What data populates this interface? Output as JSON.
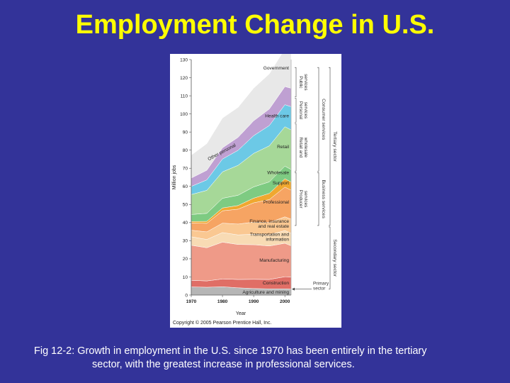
{
  "slide": {
    "title": "Employment Change in U.S.",
    "caption_line1": "Fig 12-2: Growth in employment in the U.S. since 1970 has been entirely in the tertiary",
    "caption_line2": "sector, with the greatest increase in professional services."
  },
  "colors": {
    "background": "#333399",
    "title": "#ffff00",
    "caption": "#ffffff"
  },
  "chart_data": {
    "type": "area",
    "stacked": true,
    "x": [
      1970,
      1975,
      1980,
      1985,
      1990,
      1995,
      2000,
      2002
    ],
    "xticks": [
      "1970",
      "1980",
      "1990",
      "2000"
    ],
    "yticks": [
      "0",
      "10",
      "20",
      "30",
      "40",
      "50",
      "60",
      "70",
      "80",
      "90",
      "100",
      "110",
      "120",
      "130"
    ],
    "xlabel": "Year",
    "ylabel": "Million jobs",
    "ylim": [
      0,
      130
    ],
    "xlim": [
      1970,
      2002
    ],
    "grid": false,
    "copyright": "Copyright © 2005 Pearson Prentice Hall, Inc.",
    "series": [
      {
        "name": "Agriculture and mining",
        "color": "#b6b6b6",
        "values": [
          4.5,
          4.3,
          4.6,
          4.0,
          3.6,
          3.4,
          3.4,
          3.3
        ]
      },
      {
        "name": "Construction",
        "color": "#e06e66",
        "values": [
          3.6,
          3.5,
          4.3,
          4.6,
          5.1,
          5.2,
          6.7,
          6.7
        ]
      },
      {
        "name": "Manufacturing",
        "color": "#ef9a88",
        "values": [
          19.4,
          18.3,
          20.3,
          19.3,
          19.1,
          18.5,
          18.5,
          17.2
        ]
      },
      {
        "name": "Transportation and information",
        "color": "#f8dbb4",
        "values": [
          4.7,
          4.6,
          5.3,
          5.3,
          5.8,
          6.1,
          7.0,
          6.9
        ]
      },
      {
        "name": "Finance, insurance and real estate",
        "color": "#fac892",
        "values": [
          3.6,
          4.2,
          5.2,
          6.0,
          6.7,
          6.8,
          7.6,
          7.8
        ]
      },
      {
        "name": "Professional",
        "color": "#f6a463",
        "values": [
          4.0,
          4.7,
          6.8,
          8.2,
          10.6,
          12.7,
          16.4,
          16.0
        ]
      },
      {
        "name": "Support",
        "color": "#f0a830",
        "values": [
          0.8,
          1.1,
          1.6,
          2.0,
          2.6,
          3.4,
          4.6,
          4.5
        ]
      },
      {
        "name": "Wholesale",
        "color": "#7ecb82",
        "values": [
          3.9,
          4.4,
          5.3,
          5.7,
          6.2,
          6.4,
          7.0,
          6.9
        ]
      },
      {
        "name": "Retail",
        "color": "#a6d898",
        "values": [
          11.0,
          12.7,
          14.6,
          16.5,
          18.5,
          19.9,
          21.7,
          21.9
        ]
      },
      {
        "name": "Health care",
        "color": "#6cc9e6",
        "values": [
          4.5,
          5.8,
          7.1,
          8.3,
          9.8,
          11.2,
          12.2,
          12.8
        ]
      },
      {
        "name": "Other personal",
        "color": "#bfa0d2",
        "values": [
          4.6,
          5.3,
          6.2,
          7.2,
          8.2,
          9.1,
          10.0,
          10.2
        ]
      },
      {
        "name": "Government",
        "color": "#e8e8e8",
        "values": [
          12.6,
          14.7,
          16.4,
          16.5,
          18.0,
          19.4,
          20.8,
          21.5
        ]
      }
    ],
    "segment_labels": [
      {
        "text": "Government",
        "series": "Government"
      },
      {
        "text": "Health care",
        "series": "Health care"
      },
      {
        "text": "Other personal",
        "series": "Other personal"
      },
      {
        "text": "Retail",
        "series": "Retail"
      },
      {
        "text": "Wholesale",
        "series": "Wholesale"
      },
      {
        "text": "Support",
        "series": "Support"
      },
      {
        "text": "Professional",
        "series": "Professional"
      },
      {
        "text": "Finance, insurance",
        "series": "Finance, insurance and real estate"
      },
      {
        "text": "and real estate",
        "series": "Finance, insurance and real estate"
      },
      {
        "text": "Transportation and",
        "series": "Transportation and information"
      },
      {
        "text": "information",
        "series": "Transportation and information"
      },
      {
        "text": "Manufacturing",
        "series": "Manufacturing"
      },
      {
        "text": "Construction",
        "series": "Construction"
      },
      {
        "text": "Agriculture and mining",
        "series": "Agriculture and mining"
      }
    ],
    "groups": [
      {
        "name": "Public services",
        "range": [
          109,
          126
        ],
        "level": 1
      },
      {
        "name": "Personal services",
        "range": [
          95,
          109
        ],
        "level": 1
      },
      {
        "name": "Retail and wholesale",
        "range": [
          68,
          95
        ],
        "level": 1
      },
      {
        "name": "Producer services",
        "range": [
          38,
          68
        ],
        "level": 1
      },
      {
        "name": "Consumer services",
        "range": [
          68,
          126
        ],
        "level": 2
      },
      {
        "name": "Business services",
        "range": [
          38,
          68
        ],
        "level": 2
      },
      {
        "name": "Tertiary sector",
        "range": [
          38,
          126
        ],
        "level": 3
      },
      {
        "name": "Secondary sector",
        "range": [
          3,
          38
        ],
        "level": 3
      }
    ],
    "primary_annotation": {
      "lines": [
        "Primary",
        "sector"
      ],
      "value": 3.3
    }
  }
}
